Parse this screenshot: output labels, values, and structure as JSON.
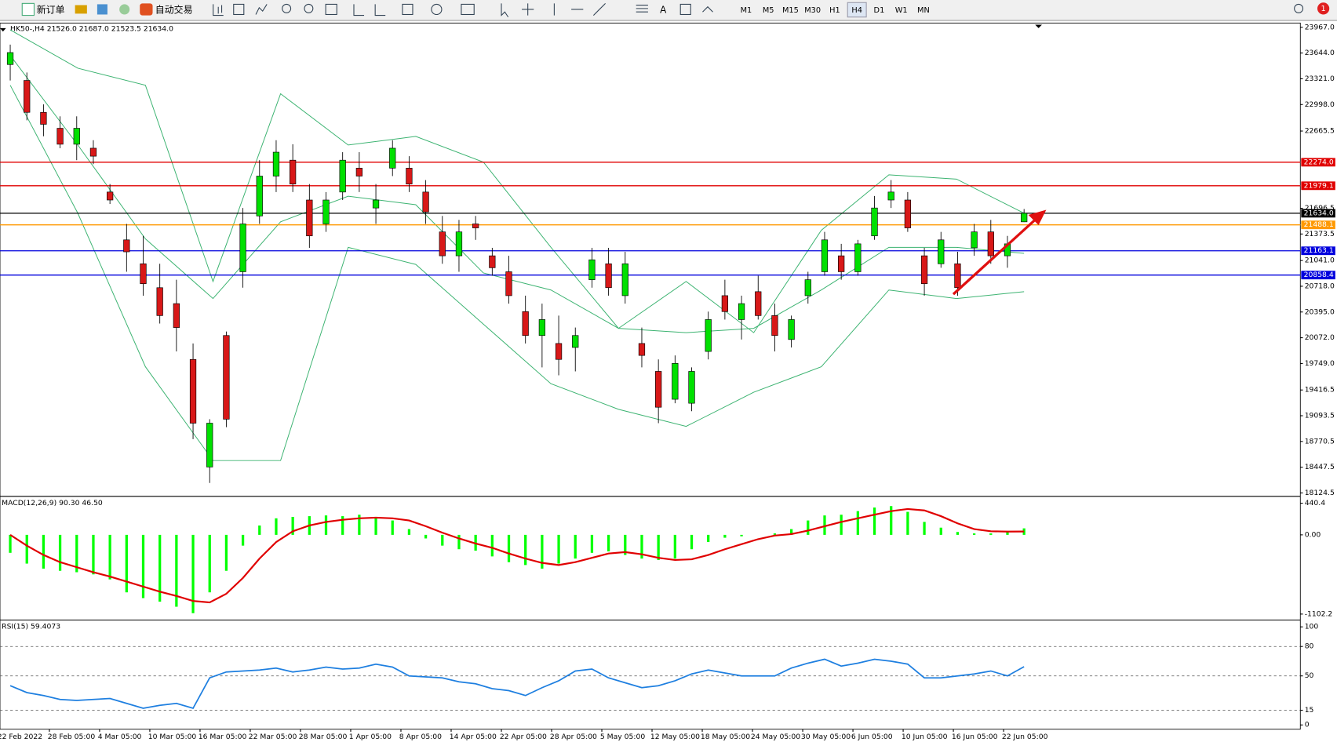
{
  "toolbar": {
    "new_order": "新订单",
    "auto_trading": "自动交易",
    "timeframes": [
      "M1",
      "M5",
      "M15",
      "M30",
      "H1",
      "H4",
      "D1",
      "W1",
      "MN"
    ],
    "active_timeframe": "H4",
    "notifications": "1"
  },
  "time_axis": {
    "labels": [
      "22 Feb 2022",
      "28 Feb 05:00",
      "4 Mar 05:00",
      "10 Mar 05:00",
      "16 Mar 05:00",
      "22 Mar 05:00",
      "28 Mar 05:00",
      "1 Apr 05:00",
      "8 Apr 05:00",
      "14 Apr 05:00",
      "22 Apr 05:00",
      "28 Apr 05:00",
      "5 May 05:00",
      "12 May 05:00",
      "18 May 05:00",
      "24 May 05:00",
      "30 May 05:00",
      "6 Jun 05:00",
      "10 Jun 05:00",
      "16 Jun 05:00",
      "22 Jun 05:00"
    ]
  },
  "chart_data": [
    {
      "type": "candlestick",
      "title": "HK50-,H4  21526.0 21687.0 21523.5 21634.0",
      "up_color": "#00e000",
      "down_color": "#d81818",
      "band_color": "#3cb371",
      "ylim": [
        18124.5,
        23967.0
      ],
      "yticks": [
        {
          "value": 18124.5,
          "label": "18124.5"
        },
        {
          "value": 18447.5,
          "label": "18447.5"
        },
        {
          "value": 18770.5,
          "label": "18770.5"
        },
        {
          "value": 19093.5,
          "label": "19093.5"
        },
        {
          "value": 19416.5,
          "label": "19416.5"
        },
        {
          "value": 19749.0,
          "label": "19749.0"
        },
        {
          "value": 20072.0,
          "label": "20072.0"
        },
        {
          "value": 20395.0,
          "label": "20395.0"
        },
        {
          "value": 20718.0,
          "label": "20718.0"
        },
        {
          "value": 21041.0,
          "label": "21041.0"
        },
        {
          "value": 21373.5,
          "label": "21373.5"
        },
        {
          "value": 21696.5,
          "label": "21696.5"
        },
        {
          "value": 22665.5,
          "label": "22665.5"
        },
        {
          "value": 22998.0,
          "label": "22998.0"
        },
        {
          "value": 23321.0,
          "label": "23321.0"
        },
        {
          "value": 23644.0,
          "label": "23644.0"
        },
        {
          "value": 23967.0,
          "label": "23967.0"
        }
      ],
      "levels": [
        {
          "value": 22274.0,
          "label": "22274.0",
          "color": "#e00000"
        },
        {
          "value": 21979.1,
          "label": "21979.1",
          "color": "#e00000"
        },
        {
          "value": 21634.0,
          "label": "21634.0",
          "color": "#000000"
        },
        {
          "value": 21488.1,
          "label": "21488.1",
          "color": "#ff9900"
        },
        {
          "value": 21163.1,
          "label": "21163.1",
          "color": "#0000dd"
        },
        {
          "value": 20858.4,
          "label": "20858.4",
          "color": "#0000dd"
        }
      ],
      "ohlc": [
        [
          23500,
          23750,
          23300,
          23650
        ],
        [
          23300,
          23400,
          22800,
          22900
        ],
        [
          22900,
          23000,
          22600,
          22750
        ],
        [
          22700,
          22850,
          22450,
          22500
        ],
        [
          22500,
          22850,
          22300,
          22700
        ],
        [
          22450,
          22550,
          22250,
          22350
        ],
        [
          21900,
          22000,
          21750,
          21800
        ],
        [
          21300,
          21500,
          20900,
          21150
        ],
        [
          21000,
          21350,
          20600,
          20750
        ],
        [
          20700,
          21000,
          20250,
          20350
        ],
        [
          20500,
          20800,
          19900,
          20200
        ],
        [
          19800,
          20000,
          18800,
          19000
        ],
        [
          18450,
          19050,
          18250,
          19000
        ],
        [
          20100,
          20150,
          18950,
          19050
        ],
        [
          20900,
          21700,
          20700,
          21500
        ],
        [
          21600,
          22300,
          21500,
          22100
        ],
        [
          22100,
          22550,
          21900,
          22400
        ],
        [
          22300,
          22500,
          21900,
          22000
        ],
        [
          21800,
          22000,
          21200,
          21350
        ],
        [
          21500,
          21900,
          21400,
          21800
        ],
        [
          21900,
          22400,
          21800,
          22300
        ],
        [
          22200,
          22400,
          21900,
          22100
        ],
        [
          21700,
          22000,
          21500,
          21800
        ],
        [
          22200,
          22550,
          22100,
          22450
        ],
        [
          22200,
          22350,
          21900,
          22000
        ],
        [
          21900,
          22050,
          21500,
          21650
        ],
        [
          21400,
          21600,
          21000,
          21100
        ],
        [
          21100,
          21550,
          20900,
          21400
        ],
        [
          21500,
          21600,
          21300,
          21450
        ],
        [
          21100,
          21200,
          20850,
          20950
        ],
        [
          20900,
          21100,
          20500,
          20600
        ],
        [
          20400,
          20600,
          20000,
          20100
        ],
        [
          20100,
          20500,
          19700,
          20300
        ],
        [
          20000,
          20350,
          19600,
          19800
        ],
        [
          19950,
          20200,
          19650,
          20100
        ],
        [
          20800,
          21200,
          20700,
          21050
        ],
        [
          21000,
          21200,
          20600,
          20700
        ],
        [
          20600,
          21150,
          20500,
          21000
        ],
        [
          20000,
          20200,
          19700,
          19850
        ],
        [
          19650,
          19800,
          19000,
          19200
        ],
        [
          19300,
          19850,
          19250,
          19750
        ],
        [
          19250,
          19700,
          19150,
          19650
        ],
        [
          19900,
          20400,
          19800,
          20300
        ],
        [
          20600,
          20800,
          20300,
          20400
        ],
        [
          20300,
          20600,
          20050,
          20500
        ],
        [
          20650,
          20850,
          20300,
          20350
        ],
        [
          20350,
          20500,
          19900,
          20100
        ],
        [
          20050,
          20350,
          19950,
          20300
        ],
        [
          20600,
          20900,
          20500,
          20800
        ],
        [
          20900,
          21400,
          20850,
          21300
        ],
        [
          21100,
          21250,
          20800,
          20900
        ],
        [
          20900,
          21300,
          20850,
          21250
        ],
        [
          21350,
          21850,
          21300,
          21700
        ],
        [
          21800,
          22050,
          21700,
          21900
        ],
        [
          21800,
          21900,
          21400,
          21450
        ],
        [
          21100,
          21200,
          20600,
          20750
        ],
        [
          21000,
          21400,
          20950,
          21300
        ],
        [
          21000,
          21150,
          20600,
          20700
        ],
        [
          21200,
          21500,
          21100,
          21400
        ],
        [
          21400,
          21550,
          21000,
          21100
        ],
        [
          21100,
          21350,
          20950,
          21250
        ],
        [
          21526,
          21687,
          21523.5,
          21634
        ]
      ],
      "upper": [
        23935,
        23454,
        23240,
        20778,
        23133,
        22490,
        22598,
        22276,
        21206,
        20190,
        20778,
        20136,
        21420,
        22116,
        22062,
        21634
      ],
      "middle": [
        23614,
        22490,
        21313,
        20564,
        21527,
        21848,
        21741,
        20885,
        20671,
        20190,
        20136,
        20190,
        20671,
        21206,
        21206,
        21131
      ],
      "lower": [
        23240,
        21634,
        19708,
        18531,
        18531,
        21206,
        20992,
        20243,
        19495,
        19174,
        18960,
        19388,
        19708,
        20671,
        20564,
        20650
      ]
    },
    {
      "type": "macd",
      "title": "MACD(12,26,9) 90.30 46.50",
      "ylim": [
        -1102.2,
        440.4
      ],
      "yticks": [
        {
          "value": -1102.2,
          "label": "-1102.2"
        },
        {
          "value": 0,
          "label": "0.00"
        },
        {
          "value": 440.4,
          "label": "440.4"
        }
      ],
      "histogram_color": "#00ff00",
      "signal_color": "#e00000",
      "histogram": [
        -250,
        -400,
        -470,
        -500,
        -520,
        -550,
        -620,
        -800,
        -880,
        -930,
        -1000,
        -1090,
        -800,
        -500,
        -150,
        130,
        230,
        250,
        260,
        270,
        260,
        280,
        250,
        200,
        80,
        -50,
        -150,
        -200,
        -220,
        -300,
        -380,
        -420,
        -470,
        -400,
        -330,
        -250,
        -230,
        -280,
        -330,
        -350,
        -330,
        -200,
        -100,
        -40,
        -20,
        0,
        20,
        80,
        200,
        270,
        280,
        330,
        380,
        400,
        320,
        180,
        100,
        40,
        20,
        20,
        40,
        90.3
      ],
      "signal": [
        0,
        -150,
        -280,
        -380,
        -450,
        -520,
        -580,
        -650,
        -720,
        -790,
        -850,
        -920,
        -940,
        -820,
        -600,
        -330,
        -100,
        50,
        130,
        180,
        210,
        230,
        240,
        230,
        200,
        120,
        30,
        -50,
        -120,
        -180,
        -260,
        -330,
        -390,
        -420,
        -380,
        -320,
        -260,
        -240,
        -270,
        -320,
        -350,
        -340,
        -280,
        -200,
        -130,
        -60,
        -10,
        10,
        60,
        120,
        180,
        230,
        280,
        330,
        360,
        340,
        260,
        160,
        80,
        50,
        45,
        46.5
      ]
    },
    {
      "type": "line",
      "title": "RSI(15) 59.4073",
      "ylim": [
        0,
        100
      ],
      "yticks": [
        0,
        15,
        50,
        80,
        100
      ],
      "color": "#1e7fe0",
      "values": [
        40,
        33,
        30,
        26,
        25,
        26,
        27,
        22,
        17,
        20,
        22,
        17,
        48,
        54,
        55,
        56,
        58,
        54,
        56,
        59,
        57,
        58,
        62,
        59,
        50,
        49,
        48,
        44,
        42,
        37,
        35,
        30,
        38,
        45,
        55,
        57,
        48,
        43,
        38,
        40,
        45,
        52,
        56,
        53,
        50,
        50,
        50,
        58,
        63,
        67,
        60,
        63,
        67,
        65,
        62,
        48,
        48,
        50,
        52,
        55,
        50,
        59.4073
      ]
    }
  ]
}
